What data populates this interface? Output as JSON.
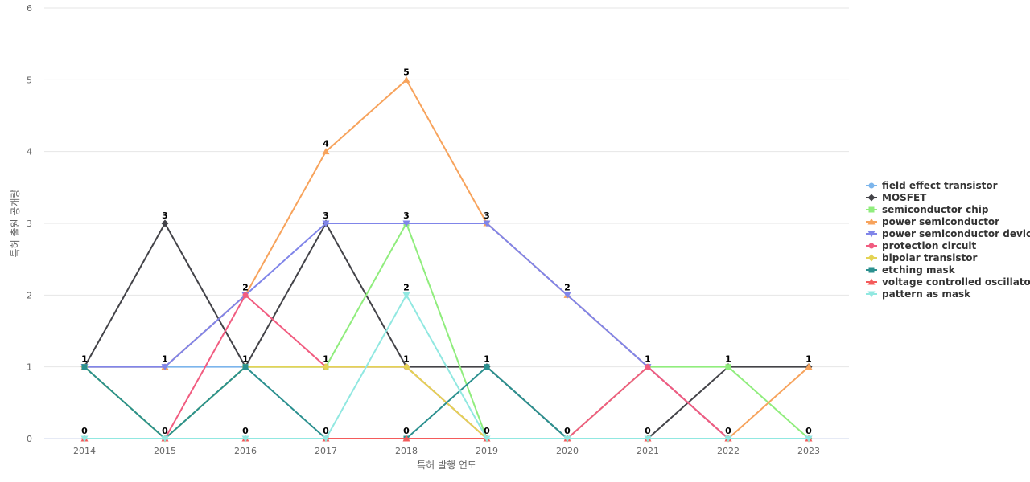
{
  "chart_data": {
    "type": "line",
    "xlabel": "특허 발행 연도",
    "ylabel": "특허 출원 공개량",
    "ylim": [
      0,
      6
    ],
    "yticks": [
      0,
      1,
      2,
      3,
      4,
      5,
      6
    ],
    "x": [
      "2014",
      "2015",
      "2016",
      "2017",
      "2018",
      "2019",
      "2020",
      "2021",
      "2022",
      "2023"
    ],
    "legend_position": "right",
    "grid": true,
    "series": [
      {
        "name": "field effect transistor",
        "color": "#7cb5ec",
        "marker": "circle",
        "values": [
          1,
          1,
          1,
          1,
          1,
          0,
          0,
          0,
          0,
          0
        ]
      },
      {
        "name": "MOSFET",
        "color": "#434348",
        "marker": "diamond",
        "values": [
          1,
          3,
          1,
          3,
          1,
          1,
          0,
          0,
          1,
          1
        ]
      },
      {
        "name": "semiconductor chip",
        "color": "#90ed7d",
        "marker": "square",
        "values": [
          1,
          0,
          1,
          1,
          3,
          0,
          0,
          1,
          1,
          0
        ]
      },
      {
        "name": "power semiconductor",
        "color": "#f7a35c",
        "marker": "triangle",
        "values": [
          1,
          1,
          2,
          4,
          5,
          3,
          2,
          1,
          0,
          1
        ]
      },
      {
        "name": "power semiconductor device",
        "color": "#8085e9",
        "marker": "triangle-down",
        "values": [
          1,
          1,
          2,
          3,
          3,
          3,
          2,
          1,
          0,
          0
        ]
      },
      {
        "name": "protection circuit",
        "color": "#f15c80",
        "marker": "circle",
        "values": [
          0,
          0,
          2,
          1,
          1,
          0,
          0,
          1,
          0,
          0
        ]
      },
      {
        "name": "bipolar transistor",
        "color": "#e4d354",
        "marker": "diamond",
        "values": [
          1,
          0,
          1,
          1,
          1,
          0,
          0,
          0,
          0,
          0
        ]
      },
      {
        "name": "etching mask",
        "color": "#2b908f",
        "marker": "square",
        "values": [
          1,
          0,
          1,
          0,
          0,
          1,
          0,
          0,
          0,
          0
        ]
      },
      {
        "name": "voltage controlled oscillator",
        "color": "#f45b5b",
        "marker": "triangle",
        "values": [
          0,
          0,
          0,
          0,
          0,
          0,
          0,
          0,
          0,
          0
        ]
      },
      {
        "name": "pattern as mask",
        "color": "#91e8e1",
        "marker": "triangle-down",
        "values": [
          0,
          0,
          0,
          0,
          2,
          0,
          0,
          0,
          0,
          0
        ]
      }
    ],
    "data_labels": [
      {
        "x": "2014",
        "top": 1,
        "bottom": 0
      },
      {
        "x": "2015",
        "top": 3,
        "bottom": 0
      },
      {
        "x": "2016",
        "top": 2,
        "bottom": 0
      },
      {
        "x": "2017",
        "top": 4,
        "bottom": 0
      },
      {
        "x": "2018",
        "top": 5,
        "bottom": 0
      },
      {
        "x": "2019",
        "top": 3,
        "bottom": 0
      },
      {
        "x": "2020",
        "top": 2,
        "bottom": 0
      },
      {
        "x": "2021",
        "top": 1,
        "bottom": 0
      },
      {
        "x": "2022",
        "top": 1,
        "bottom": 0
      },
      {
        "x": "2023",
        "top": 1,
        "bottom": 0
      }
    ],
    "mid_labels": [
      {
        "x": "2014",
        "value": 1
      },
      {
        "x": "2015",
        "value": 1
      },
      {
        "x": "2016",
        "value": 1
      },
      {
        "x": "2017",
        "value": 3
      },
      {
        "x": "2017",
        "value": 1
      },
      {
        "x": "2018",
        "value": 3
      },
      {
        "x": "2018",
        "value": 2
      },
      {
        "x": "2018",
        "value": 1
      },
      {
        "x": "2019",
        "value": 1
      }
    ]
  }
}
